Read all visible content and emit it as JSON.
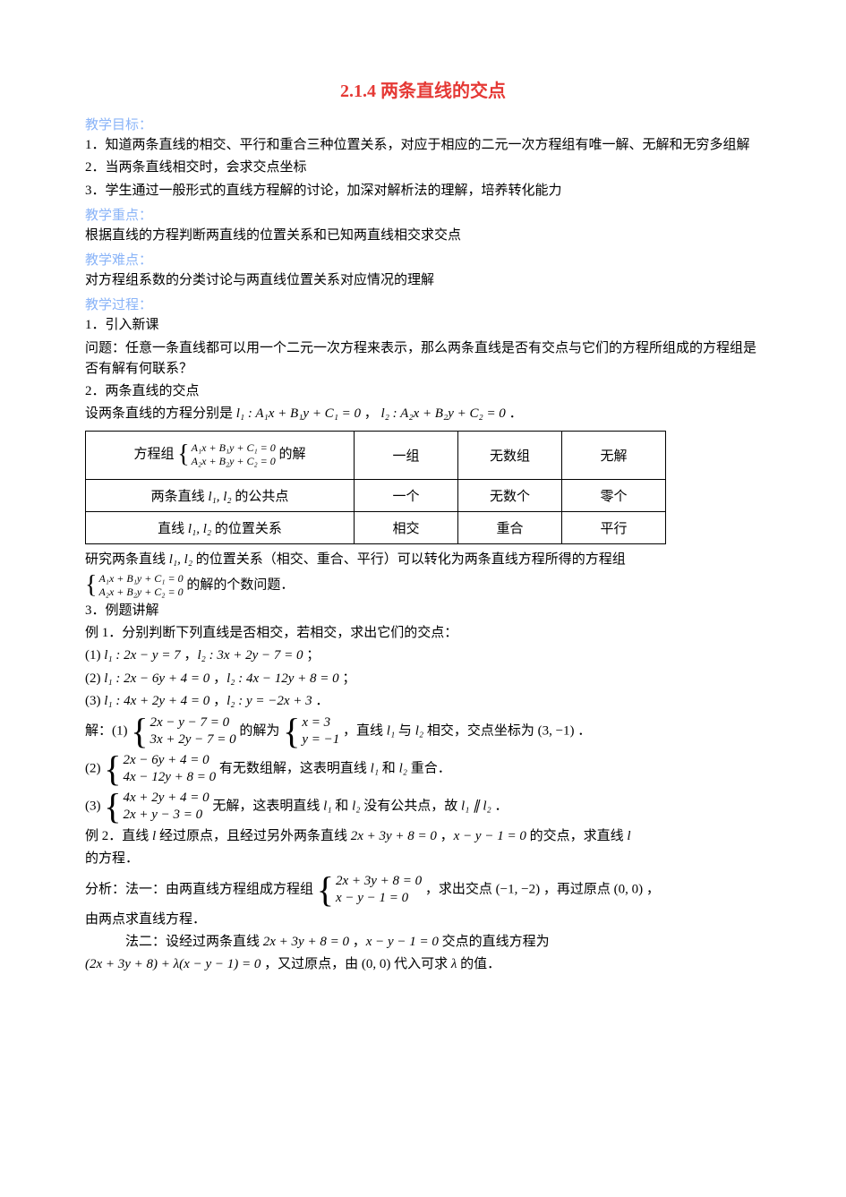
{
  "title": {
    "text": "2.1.4 两条直线的交点",
    "color": "#e53935",
    "fontsize": 20
  },
  "header_color": "#8ab4f8",
  "body_fontsize": 15,
  "headers": {
    "goal": "教学目标：",
    "key": "教学重点：",
    "difficulty": "教学难点：",
    "process": "教学过程："
  },
  "goals": {
    "g1": "1．知道两条直线的相交、平行和重合三种位置关系，对应于相应的二元一次方程组有唯一解、无解和无穷多组解",
    "g2": "2．当两条直线相交时，会求交点坐标",
    "g3": "3．学生通过一般形式的直线方程解的讨论，加深对解析法的理解，培养转化能力"
  },
  "key_point": "根据直线的方程判断两直线的位置关系和已知两直线相交求交点",
  "difficulty_point": "对方程组系数的分类讨论与两直线位置关系对应情况的理解",
  "proc": {
    "step1": "1．引入新课",
    "q": "问题：任意一条直线都可以用一个二元一次方程来表示，那么两条直线是否有交点与它们的方程所组成的方程组是否有解有何联系？",
    "step2": "2．两条直线的交点",
    "setup_a": "设两条直线的方程分别是 ",
    "setup_l1": "l₁ : A₁x + B₁y + C₁ = 0",
    "setup_mid": " ，",
    "setup_l2": "l₂ : A₂x + B₂y + C₂ = 0",
    "setup_end": " ．"
  },
  "table": {
    "sys_prefix": "方程组 ",
    "sys_suffix": " 的解",
    "sys_r1": "A₁x + B₁y + C₁ = 0",
    "sys_r2": "A₂x + B₂y + C₂ = 0",
    "sys_fontsize": 12,
    "brace_fontsize_sm": 28,
    "r1c2": "一组",
    "r1c3": "无数组",
    "r1c4": "无解",
    "r2c1a": "两条直线 ",
    "r2c1b": "l₁, l₂",
    "r2c1c": " 的公共点",
    "r2c2": "一个",
    "r2c3": "无数个",
    "r2c4": "零个",
    "r3c1a": "直线 ",
    "r3c1b": "l₁, l₂",
    "r3c1c": " 的位置关系",
    "r3c2": "相交",
    "r3c3": "重合",
    "r3c4": "平行"
  },
  "research": {
    "a": "研究两条直线 ",
    "b": "l₁, l₂",
    "c": " 的位置关系（相交、重合、平行）可以转化为两条直线方程所得的方程组",
    "suffix": " 的解的个数问题．"
  },
  "step3": "3．例题讲解",
  "ex1": {
    "head": "例 1．分别判断下列直线是否相交，若相交，求出它们的交点：",
    "p1a": "(1) ",
    "p1b": "l₁ : 2x − y = 7",
    "p1c": " ，",
    "p1d": "l₂ : 3x + 2y − 7 = 0",
    "p1e": " ；",
    "p2a": "(2) ",
    "p2b": "l₁ : 2x − 6y + 4 = 0",
    "p2c": " ，",
    "p2d": "l₂ : 4x − 12y + 8 = 0",
    "p2e": " ；",
    "p3a": "(3) ",
    "p3b": "l₁ : 4x + 2y + 4 = 0",
    "p3c": " ，",
    "p3d": "l₂ : y = −2x + 3",
    "p3e": " ．"
  },
  "sol": {
    "head": "解：(1) ",
    "sys1r1": "2x − y − 7 = 0",
    "sys1r2": "3x + 2y − 7 = 0",
    "mid1": " 的解为 ",
    "ans1r1": "x = 3",
    "ans1r2": "y = −1",
    "tail1a": " ，直线 ",
    "tail1b": "l₁",
    "tail1c": " 与 ",
    "tail1d": "l₂",
    "tail1e": " 相交，交点坐标为 ",
    "pt": "(3, −1)",
    "tail1f": " ．",
    "p2": "(2) ",
    "sys2r1": "2x − 6y + 4 = 0",
    "sys2r2": "4x − 12y + 8 = 0",
    "tail2a": " 有无数组解，这表明直线 ",
    "tail2b": "l₁",
    "tail2c": " 和 ",
    "tail2d": "l₂",
    "tail2e": " 重合．",
    "p3": "(3) ",
    "sys3r1": "4x + 2y + 4 = 0",
    "sys3r2": "2x + y − 3 = 0",
    "tail3a": " 无解，这表明直线 ",
    "tail3b": "l₁",
    "tail3c": " 和 ",
    "tail3d": "l₂",
    "tail3e": " 没有公共点，故 ",
    "tail3f": "l₁ ∥ l₂",
    "tail3g": " ．",
    "brace_fontsize_lg": 40
  },
  "ex2": {
    "head_a": "例 2．直线 ",
    "head_b": "l",
    "head_c": " 经过原点，且经过另外两条直线 ",
    "eq1": "2x + 3y + 8 = 0",
    "mid": " ，",
    "eq2": "x − y − 1 = 0",
    "head_d": " 的交点，求直线 ",
    "head_e": "l",
    "head_f": "的方程．",
    "m1a": "分析：法一：由两直线方程组成方程组 ",
    "m1sysr1": "2x + 3y + 8 = 0",
    "m1sysr2": "x − y − 1 = 0",
    "m1b": " ，求出交点 ",
    "m1pt": "(−1, −2)",
    "m1c": " ，再过原点 ",
    "m1o": "(0, 0)",
    "m1d": " ，",
    "m1e": "由两点求直线方程．",
    "m2a": "　　　法二：设经过两条直线 ",
    "m2eq1": "2x + 3y + 8 = 0",
    "m2mid": " ，",
    "m2eq2": "x − y − 1 = 0",
    "m2b": " 交点的直线方程为",
    "m2c": "(2x + 3y + 8) + λ(x − y − 1) = 0",
    "m2d": " ，又过原点，由 ",
    "m2o": "(0, 0)",
    "m2e": " 代入可求 ",
    "m2f": "λ",
    "m2g": " 的值．"
  }
}
